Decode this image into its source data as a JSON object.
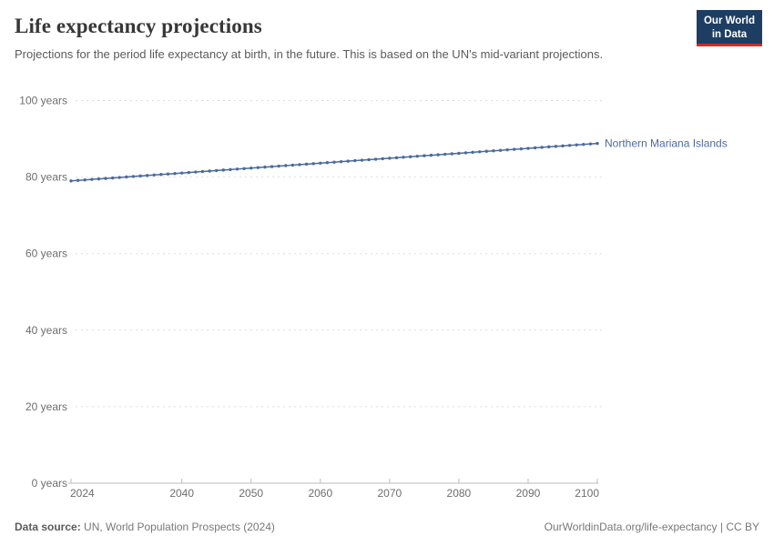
{
  "header": {
    "title": "Life expectancy projections",
    "subtitle": "Projections for the period life expectancy at birth, in the future. This is based on the UN's mid-variant projections."
  },
  "logo": {
    "line1": "Our World",
    "line2": "in Data",
    "bg_color": "#1d3d63",
    "accent_color": "#d42b21"
  },
  "chart_data": {
    "type": "line",
    "title": "Life expectancy projections",
    "xlabel": "",
    "ylabel": "years",
    "xlim": [
      2024,
      2100
    ],
    "ylim": [
      0,
      100
    ],
    "xticks": [
      2024,
      2040,
      2050,
      2060,
      2070,
      2080,
      2090,
      2100
    ],
    "yticks": [
      0,
      20,
      40,
      60,
      80,
      100
    ],
    "ytick_suffix": " years",
    "grid": "dashed-horizontal",
    "legend_position": "end-of-line-label",
    "x": [
      2024,
      2025,
      2026,
      2027,
      2028,
      2029,
      2030,
      2031,
      2032,
      2033,
      2034,
      2035,
      2036,
      2037,
      2038,
      2039,
      2040,
      2041,
      2042,
      2043,
      2044,
      2045,
      2046,
      2047,
      2048,
      2049,
      2050,
      2051,
      2052,
      2053,
      2054,
      2055,
      2056,
      2057,
      2058,
      2059,
      2060,
      2061,
      2062,
      2063,
      2064,
      2065,
      2066,
      2067,
      2068,
      2069,
      2070,
      2071,
      2072,
      2073,
      2074,
      2075,
      2076,
      2077,
      2078,
      2079,
      2080,
      2081,
      2082,
      2083,
      2084,
      2085,
      2086,
      2087,
      2088,
      2089,
      2090,
      2091,
      2092,
      2093,
      2094,
      2095,
      2096,
      2097,
      2098,
      2099,
      2100
    ],
    "series": [
      {
        "name": "Northern Mariana Islands",
        "color": "#4c6a9c",
        "values": [
          79.0,
          79.13,
          79.26,
          79.39,
          79.52,
          79.64,
          79.77,
          79.9,
          80.03,
          80.16,
          80.29,
          80.42,
          80.55,
          80.68,
          80.81,
          80.93,
          81.06,
          81.19,
          81.32,
          81.45,
          81.58,
          81.71,
          81.84,
          81.97,
          82.09,
          82.22,
          82.35,
          82.48,
          82.61,
          82.74,
          82.87,
          83.0,
          83.13,
          83.26,
          83.38,
          83.51,
          83.64,
          83.77,
          83.9,
          84.03,
          84.16,
          84.29,
          84.42,
          84.54,
          84.67,
          84.8,
          84.93,
          85.06,
          85.19,
          85.32,
          85.45,
          85.58,
          85.71,
          85.83,
          85.96,
          86.09,
          86.22,
          86.35,
          86.48,
          86.61,
          86.74,
          86.87,
          86.99,
          87.12,
          87.25,
          87.38,
          87.51,
          87.64,
          87.77,
          87.9,
          88.03,
          88.15,
          88.28,
          88.41,
          88.54,
          88.67,
          88.8
        ]
      }
    ]
  },
  "footer": {
    "source_label": "Data source:",
    "source_text": " UN, World Population Prospects (2024)",
    "right_text": "OurWorldinData.org/life-expectancy | CC BY"
  }
}
